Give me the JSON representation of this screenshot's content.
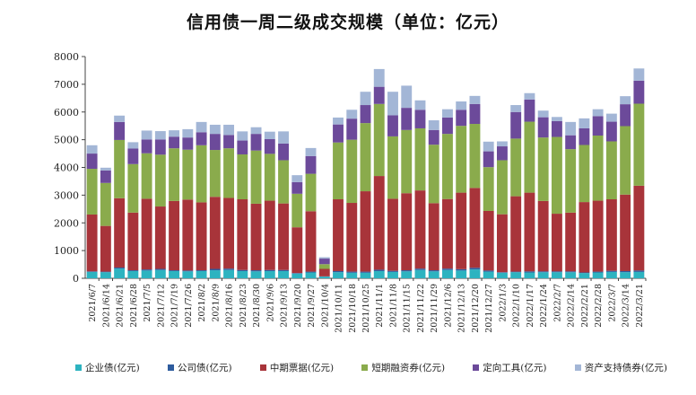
{
  "chart_data": {
    "type": "bar",
    "stacked": true,
    "title": "信用债一周二级成交规模（单位：亿元）",
    "xlabel": "",
    "ylabel": "",
    "ylim": [
      0,
      8000
    ],
    "yticks": [
      "0",
      "1000",
      "2000",
      "3000",
      "4000",
      "5000",
      "6000",
      "7000",
      "8000"
    ],
    "grid": false,
    "legend_position": "bottom",
    "categories": [
      "2021/6/7",
      "2021/6/14",
      "2021/6/21",
      "2021/6/28",
      "2021/7/5",
      "2021/7/12",
      "2021/7/19",
      "2021/7/26",
      "2021/8/2",
      "2021/8/9",
      "2021/8/16",
      "2021/8/23",
      "2021/8/30",
      "2021/9/6",
      "2021/9/13",
      "2021/9/20",
      "2021/9/27",
      "2021/10/4",
      "2021/10/11",
      "2021/10/18",
      "2021/10/25",
      "2021/11/1",
      "2021/11/8",
      "2021/11/15",
      "2021/11/22",
      "2021/11/29",
      "2021/12/6",
      "2021/12/13",
      "2021/12/20",
      "2021/12/27",
      "2022/1/3",
      "2022/1/10",
      "2022/1/17",
      "2022/1/24",
      "2022/2/7",
      "2022/2/14",
      "2022/2/21",
      "2022/2/28",
      "2022/3/7",
      "2022/3/14",
      "2022/3/21"
    ],
    "x_tick_labels": [
      "2021/6/7",
      "2021/6/14",
      "2021/6/21",
      "2021/6/28",
      "2021/7/5",
      "2021/7/12",
      "2021/7/19",
      "2021/7/26",
      "2021/8/2",
      "2021/8/9",
      "2021/8/16",
      "2021/8/23",
      "2021/8/30",
      "2021/9/6",
      "2021/9/13",
      "2021/9/20",
      "2021/9/27",
      "2021/10/4",
      "2021/10/11",
      "2021/10/18",
      "2021/10/25",
      "2021/11/1",
      "2021/11/8",
      "2021/11/15",
      "2021/11/22",
      "2021/11/29",
      "2021/12/6",
      "2021/12/13",
      "2021/12/20",
      "2021/12/27",
      "2022/1/3",
      "2022/1/10",
      "2022/1/17",
      "2022/1/24",
      "2022/2/7",
      "2022/2/14",
      "2022/2/21",
      "2022/2/28",
      "2022/3/7",
      "2022/3/14",
      "2022/3/21"
    ],
    "series": [
      {
        "name": "企业债(亿元)",
        "color": "#2db3c0",
        "values": [
          230,
          220,
          350,
          260,
          280,
          300,
          260,
          250,
          260,
          290,
          300,
          260,
          250,
          260,
          260,
          170,
          210,
          60,
          220,
          200,
          200,
          260,
          230,
          250,
          300,
          250,
          300,
          280,
          320,
          240,
          200,
          220,
          210,
          220,
          220,
          220,
          190,
          210,
          230,
          220,
          230
        ]
      },
      {
        "name": "公司债(亿元)",
        "color": "#2e5c9e",
        "values": [
          20,
          20,
          40,
          30,
          40,
          40,
          30,
          30,
          30,
          50,
          50,
          40,
          40,
          40,
          40,
          20,
          30,
          10,
          40,
          40,
          40,
          50,
          40,
          40,
          50,
          40,
          50,
          50,
          60,
          40,
          20,
          20,
          40,
          30,
          30,
          30,
          20,
          30,
          40,
          40,
          50
        ]
      },
      {
        "name": "中期票据(亿元)",
        "color": "#a8343a",
        "values": [
          2050,
          1650,
          2500,
          2080,
          2550,
          2250,
          2500,
          2560,
          2450,
          2600,
          2550,
          2550,
          2400,
          2500,
          2400,
          1650,
          2180,
          270,
          2590,
          2480,
          2900,
          3380,
          2600,
          2780,
          2820,
          2420,
          2510,
          2760,
          2880,
          2150,
          2090,
          2720,
          2840,
          2540,
          2080,
          2120,
          2540,
          2560,
          2580,
          2760,
          3060
        ]
      },
      {
        "name": "短期融资券(亿元)",
        "color": "#8aab4c",
        "values": [
          1650,
          1550,
          2100,
          1750,
          1640,
          1870,
          1900,
          1800,
          2060,
          1690,
          1790,
          1620,
          1920,
          1690,
          1560,
          1210,
          1350,
          170,
          2050,
          2280,
          2460,
          2600,
          2250,
          2280,
          2240,
          2110,
          2350,
          2410,
          2310,
          1580,
          1950,
          2080,
          2560,
          2290,
          2770,
          2290,
          2060,
          2350,
          2090,
          2470,
          2960
        ]
      },
      {
        "name": "定向工具(亿元)",
        "color": "#6c4a9a",
        "values": [
          550,
          450,
          650,
          560,
          500,
          550,
          420,
          440,
          470,
          580,
          480,
          500,
          600,
          530,
          600,
          420,
          640,
          200,
          650,
          760,
          650,
          620,
          760,
          800,
          670,
          530,
          590,
          580,
          720,
          570,
          500,
          960,
          800,
          730,
          570,
          500,
          600,
          700,
          710,
          790,
          830
        ]
      },
      {
        "name": "资产支持债券(亿元)",
        "color": "#a3b6d6",
        "values": [
          300,
          100,
          230,
          230,
          320,
          300,
          230,
          300,
          370,
          330,
          370,
          330,
          240,
          270,
          440,
          250,
          290,
          50,
          250,
          320,
          480,
          640,
          850,
          800,
          340,
          350,
          300,
          300,
          290,
          350,
          180,
          250,
          230,
          240,
          150,
          480,
          360,
          250,
          290,
          290,
          440
        ]
      }
    ]
  }
}
